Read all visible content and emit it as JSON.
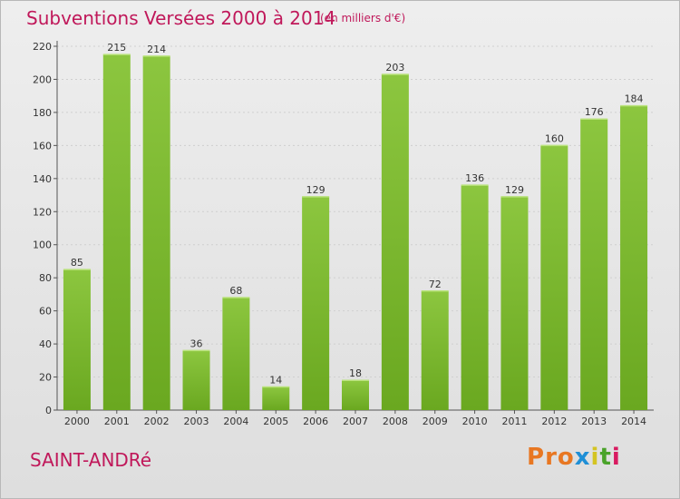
{
  "chart_data": {
    "type": "bar",
    "title": "Subventions Versées 2000 à 2014",
    "subtitle": "(en milliers d'€)",
    "categories": [
      "2000",
      "2001",
      "2002",
      "2003",
      "2004",
      "2005",
      "2006",
      "2007",
      "2008",
      "2009",
      "2010",
      "2011",
      "2012",
      "2013",
      "2014"
    ],
    "values": [
      85,
      215,
      214,
      36,
      68,
      14,
      129,
      18,
      203,
      72,
      136,
      129,
      160,
      176,
      184
    ],
    "ylim": [
      0,
      220
    ],
    "yticks": [
      0,
      20,
      40,
      60,
      80,
      100,
      120,
      140,
      160,
      180,
      200,
      220
    ],
    "grid": true,
    "bar_color": "#8cc63f",
    "bar_color_dark": "#6aa820"
  },
  "footer": {
    "place": "SAINT-ANDRé",
    "logo": "Proxiti"
  },
  "colors": {
    "title": "#c0185a",
    "logo_letters": [
      "#e87722",
      "#e87722",
      "#e87722",
      "#1f8fd6",
      "#d4c422",
      "#4aa32a",
      "#d81b60"
    ]
  }
}
